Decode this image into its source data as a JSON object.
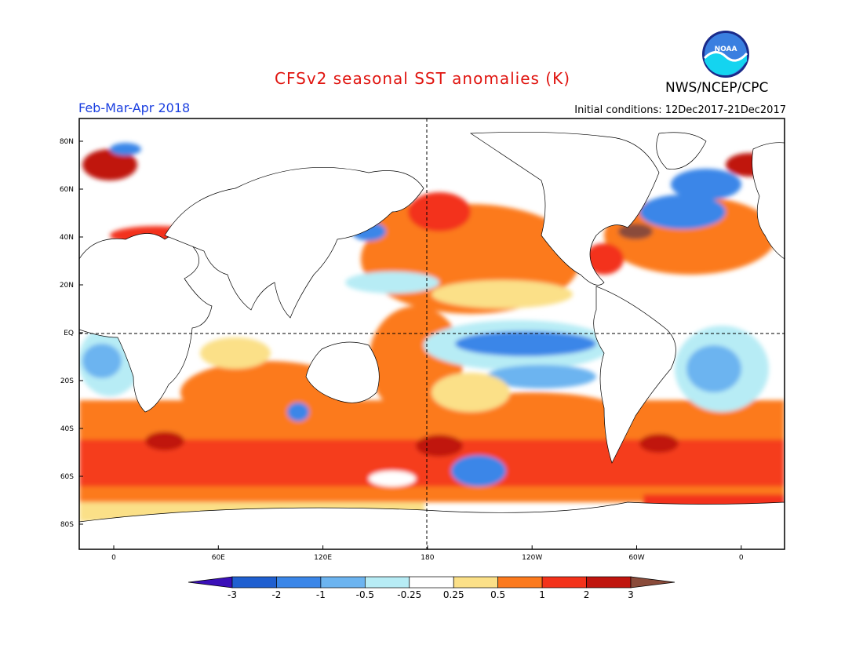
{
  "header": {
    "title": "CFSv2 seasonal SST anomalies (K)",
    "period": "Feb-Mar-Apr 2018",
    "initial_conditions": "Initial conditions: 12Dec2017-21Dec2017",
    "agency": "NWS/NCEP/CPC",
    "logo_text": "NOAA"
  },
  "map": {
    "lat_labels": [
      "80N",
      "60N",
      "40N",
      "20N",
      "EQ",
      "20S",
      "40S",
      "60S",
      "80S"
    ],
    "lon_labels": [
      "0",
      "60E",
      "120E",
      "180",
      "120W",
      "60W",
      "0"
    ],
    "projection": "cylindrical equidistant",
    "lon_range": [
      -20,
      380
    ],
    "lat_range": [
      -90,
      90
    ]
  },
  "colorbar": {
    "labels": [
      "-3",
      "-2",
      "-1",
      "-0.5",
      "-0.25",
      "0.25",
      "0.5",
      "1",
      "2",
      "3"
    ],
    "colors": [
      "#3a0fb8",
      "#1f5fd0",
      "#3a86e8",
      "#6cb4f0",
      "#b7ecf5",
      "#ffffff",
      "#fbe088",
      "#fc7a1e",
      "#f3321a",
      "#c0150e",
      "#8a4b3a"
    ]
  }
}
